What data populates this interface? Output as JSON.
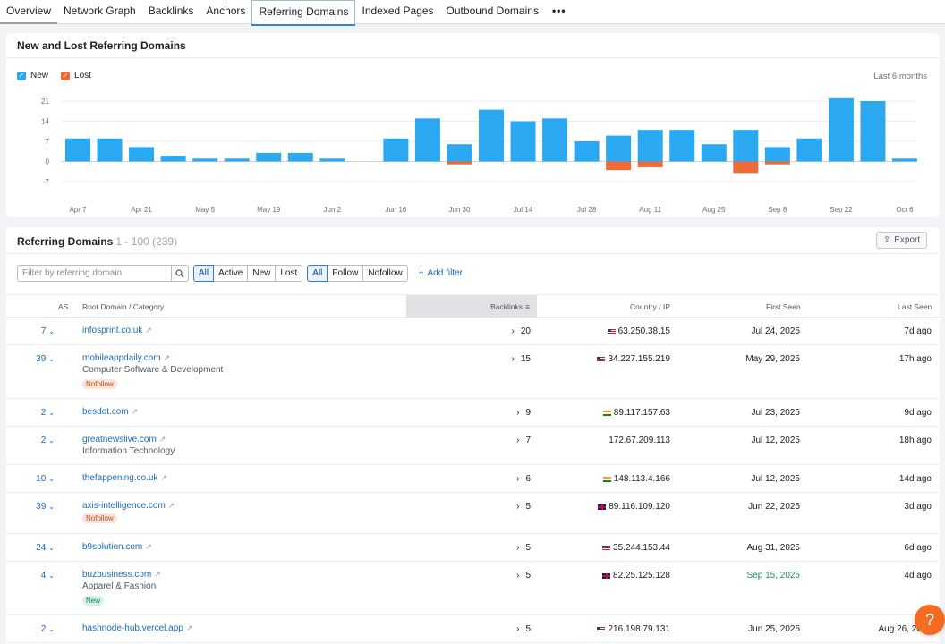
{
  "tabs": [
    "Overview",
    "Network Graph",
    "Backlinks",
    "Anchors",
    "Referring Domains",
    "Indexed Pages",
    "Outbound Domains"
  ],
  "active_tab": "Referring Domains",
  "more_label": "•••",
  "chart_card": {
    "title": "New and Lost Referring Domains",
    "legend": {
      "new": "New",
      "lost": "Lost"
    },
    "period": "Last 6 months"
  },
  "chart_data": {
    "type": "bar",
    "title": "New and Lost Referring Domains",
    "y_ticks": [
      21,
      14,
      7,
      0,
      -7
    ],
    "ylim": [
      -7,
      21
    ],
    "x_tick_labels": [
      "Apr 7",
      "Apr 21",
      "May 5",
      "May 19",
      "Jun 2",
      "Jun 16",
      "Jun 30",
      "Jul 14",
      "Jul 28",
      "Aug 11",
      "Aug 25",
      "Sep 8",
      "Sep 22",
      "Oct 6"
    ],
    "x": [
      "Apr 7",
      "Apr 14",
      "Apr 21",
      "Apr 28",
      "May 5",
      "May 12",
      "May 19",
      "May 26",
      "Jun 2",
      "Jun 9",
      "Jun 16",
      "Jun 23",
      "Jun 30",
      "Jul 7",
      "Jul 14",
      "Jul 21",
      "Jul 28",
      "Aug 4",
      "Aug 11",
      "Aug 18",
      "Aug 25",
      "Sep 1",
      "Sep 8",
      "Sep 15",
      "Sep 22",
      "Sep 29",
      "Oct 6"
    ],
    "series": [
      {
        "name": "New",
        "color": "#2aa8f2",
        "values": [
          8,
          8,
          5,
          2,
          1,
          1,
          3,
          3,
          1,
          0,
          8,
          15,
          6,
          18,
          14,
          15,
          7,
          9,
          11,
          11,
          6,
          11,
          5,
          8,
          22,
          21,
          1
        ]
      },
      {
        "name": "Lost",
        "color": "#f06a35",
        "values": [
          0,
          0,
          0,
          0,
          0,
          0,
          0,
          0,
          0,
          0,
          0,
          0,
          -1,
          0,
          0,
          0,
          0,
          -3,
          -2,
          0,
          0,
          -4,
          -1,
          0,
          0,
          0,
          0
        ]
      }
    ],
    "grid": true,
    "legend": "top-left"
  },
  "table_card": {
    "title": "Referring Domains",
    "count": "1 - 100 (239)",
    "export_label": "Export",
    "search_placeholder": "Filter by referring domain",
    "status_filters": [
      "All",
      "Active",
      "New",
      "Lost"
    ],
    "status_selected": "All",
    "type_filters": [
      "All",
      "Follow",
      "Nofollow"
    ],
    "type_selected": "All",
    "add_filter_label": "Add filter",
    "columns": {
      "as": "AS",
      "domain": "Root Domain / Category",
      "backlinks": "Backlinks",
      "country": "Country / IP",
      "first_seen": "First Seen",
      "last_seen": "Last Seen"
    },
    "rows": [
      {
        "as": "7",
        "domain": "infosprint.co.uk",
        "category": "",
        "badge": "",
        "backlinks": "20",
        "flag": "us",
        "ip": "63.250.38.15",
        "first_seen": "Jul 24, 2025",
        "last_seen": "7d ago"
      },
      {
        "as": "39",
        "domain": "mobileappdaily.com",
        "category": "Computer Software & Development",
        "badge": "Nofollow",
        "backlinks": "15",
        "flag": "us",
        "ip": "34.227.155.219",
        "first_seen": "May 29, 2025",
        "last_seen": "17h ago"
      },
      {
        "as": "2",
        "domain": "besdot.com",
        "category": "",
        "badge": "",
        "backlinks": "9",
        "flag": "in",
        "ip": "89.117.157.63",
        "first_seen": "Jul 23, 2025",
        "last_seen": "9d ago"
      },
      {
        "as": "2",
        "domain": "greatnewslive.com",
        "category": "Information Technology",
        "badge": "",
        "backlinks": "7",
        "flag": "",
        "ip": "172.67.209.113",
        "first_seen": "Jul 12, 2025",
        "last_seen": "18h ago"
      },
      {
        "as": "10",
        "domain": "thefappening.co.uk",
        "category": "",
        "badge": "",
        "backlinks": "6",
        "flag": "in",
        "ip": "148.113.4.166",
        "first_seen": "Jul 12, 2025",
        "last_seen": "14d ago"
      },
      {
        "as": "39",
        "domain": "axis-intelligence.com",
        "category": "",
        "badge": "Nofollow",
        "backlinks": "5",
        "flag": "gb",
        "ip": "89.116.109.120",
        "first_seen": "Jun 22, 2025",
        "last_seen": "3d ago"
      },
      {
        "as": "24",
        "domain": "b9solution.com",
        "category": "",
        "badge": "",
        "backlinks": "5",
        "flag": "us",
        "ip": "35.244.153.44",
        "first_seen": "Aug 31, 2025",
        "last_seen": "6d ago"
      },
      {
        "as": "4",
        "domain": "buzbusiness.com",
        "category": "Apparel & Fashion",
        "badge": "New",
        "backlinks": "5",
        "flag": "gb",
        "ip": "82.25.125.128",
        "first_seen": "Sep 15, 2025",
        "last_seen": "4d ago"
      },
      {
        "as": "2",
        "domain": "hashnode-hub.vercel.app",
        "category": "",
        "badge": "",
        "backlinks": "5",
        "flag": "us",
        "ip": "216.198.79.131",
        "first_seen": "Jun 25, 2025",
        "last_seen": "Aug 26, 2025"
      }
    ]
  },
  "help_label": "?"
}
